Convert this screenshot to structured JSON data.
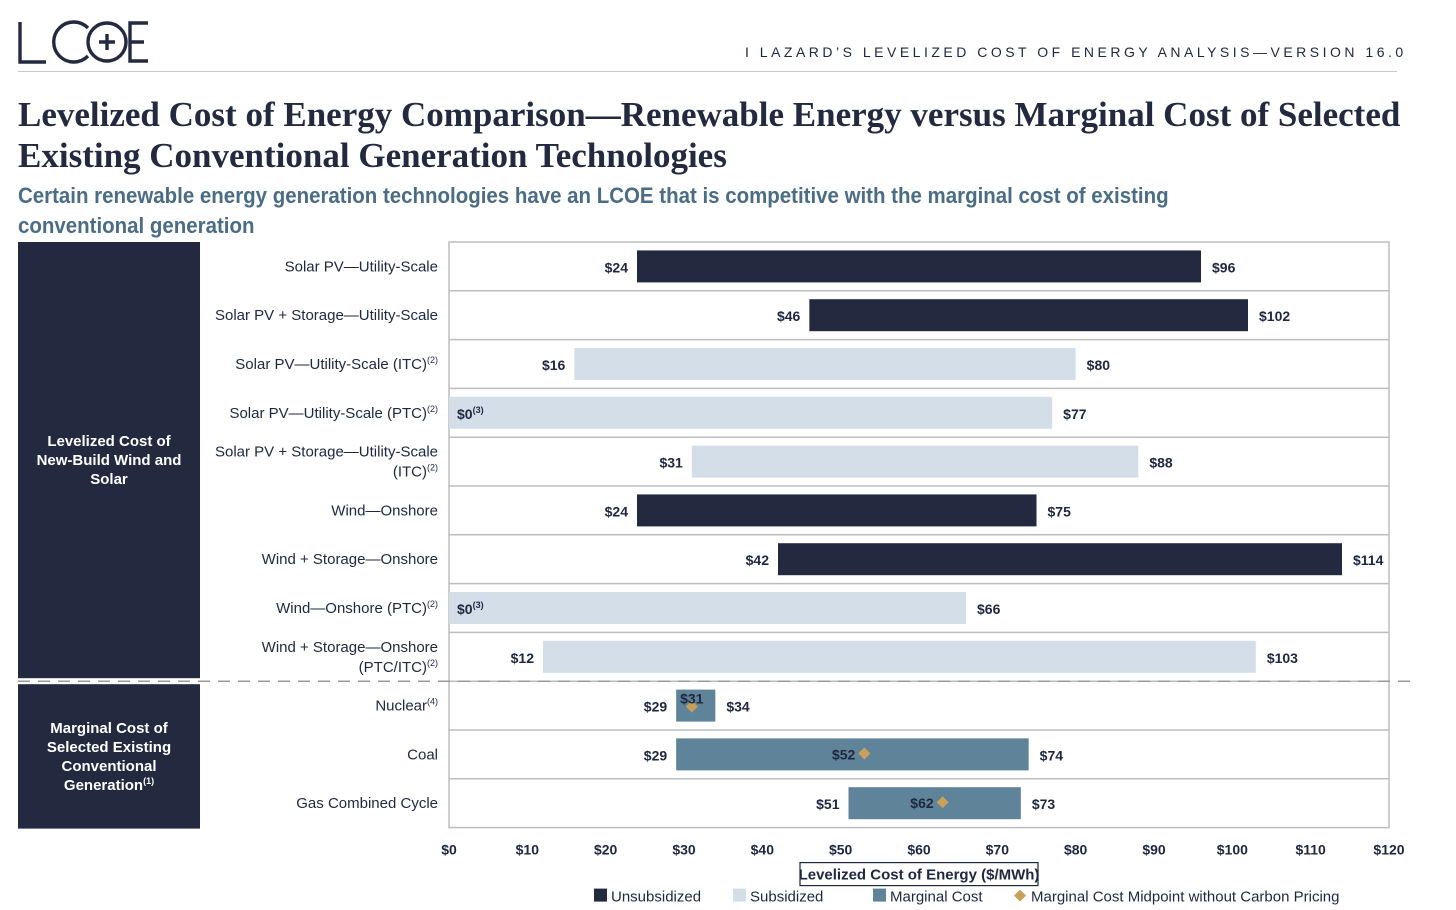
{
  "header": {
    "logo_text": "LCOE",
    "report_line": "I    LAZARD’S LEVELIZED COST OF ENERGY ANALYSIS—VERSION 16.0"
  },
  "title": "Levelized Cost of Energy Comparison—Renewable Energy versus Marginal Cost of Selected Existing Conventional Generation Technologies",
  "subtitle": "Certain renewable energy generation technologies have an LCOE that is competitive with the marginal cost of existing conventional generation",
  "chart_data": {
    "type": "bar",
    "orientation": "horizontal-range",
    "xlabel": "Levelized Cost of Energy ($/MWh)",
    "xlim": [
      0,
      120
    ],
    "xticks": [
      0,
      10,
      20,
      30,
      40,
      50,
      60,
      70,
      80,
      90,
      100,
      110,
      120
    ],
    "xtick_labels": [
      "$0",
      "$10",
      "$20",
      "$30",
      "$40",
      "$50",
      "$60",
      "$70",
      "$80",
      "$90",
      "$100",
      "$110",
      "$120"
    ],
    "groups": [
      {
        "label": "Levelized Cost of New-Build Wind and Solar",
        "lines": [
          "Levelized Cost of",
          "New-Build Wind and",
          "Solar"
        ],
        "sup": ""
      },
      {
        "label": "Marginal Cost of Selected Existing Conventional Generation",
        "lines": [
          "Marginal Cost of",
          "Selected Existing",
          "Conventional",
          "Generation"
        ],
        "sup": "(1)"
      }
    ],
    "rows": [
      {
        "lines": [
          "Solar PV—Utility-Scale"
        ],
        "sup": "",
        "group": 0,
        "kind": "unsubsidized",
        "low": 24,
        "high": 96,
        "low_label": "$24",
        "high_label": "$96",
        "low_sup": ""
      },
      {
        "lines": [
          "Solar PV + Storage—Utility-Scale"
        ],
        "sup": "",
        "group": 0,
        "kind": "unsubsidized",
        "low": 46,
        "high": 102,
        "low_label": "$46",
        "high_label": "$102",
        "low_sup": ""
      },
      {
        "lines": [
          "Solar PV—Utility-Scale (ITC)"
        ],
        "sup": "(2)",
        "group": 0,
        "kind": "subsidized",
        "low": 16,
        "high": 80,
        "low_label": "$16",
        "high_label": "$80",
        "low_sup": ""
      },
      {
        "lines": [
          "Solar PV—Utility-Scale (PTC)"
        ],
        "sup": "(2)",
        "group": 0,
        "kind": "subsidized",
        "low": 0,
        "high": 77,
        "low_label": "$0",
        "high_label": "$77",
        "low_sup": "(3)"
      },
      {
        "lines": [
          "Solar PV + Storage—Utility-Scale",
          "(ITC)"
        ],
        "sup": "(2)",
        "group": 0,
        "kind": "subsidized",
        "low": 31,
        "high": 88,
        "low_label": "$31",
        "high_label": "$88",
        "low_sup": ""
      },
      {
        "lines": [
          "Wind—Onshore"
        ],
        "sup": "",
        "group": 0,
        "kind": "unsubsidized",
        "low": 24,
        "high": 75,
        "low_label": "$24",
        "high_label": "$75",
        "low_sup": ""
      },
      {
        "lines": [
          "Wind + Storage—Onshore"
        ],
        "sup": "",
        "group": 0,
        "kind": "unsubsidized",
        "low": 42,
        "high": 114,
        "low_label": "$42",
        "high_label": "$114",
        "low_sup": ""
      },
      {
        "lines": [
          "Wind—Onshore (PTC)"
        ],
        "sup": "(2)",
        "group": 0,
        "kind": "subsidized",
        "low": 0,
        "high": 66,
        "low_label": "$0",
        "high_label": "$66",
        "low_sup": "(3)"
      },
      {
        "lines": [
          "Wind + Storage—Onshore",
          "(PTC/ITC)"
        ],
        "sup": "(2)",
        "group": 0,
        "kind": "subsidized",
        "low": 12,
        "high": 103,
        "low_label": "$12",
        "high_label": "$103",
        "low_sup": ""
      },
      {
        "lines": [
          "Nuclear"
        ],
        "sup": "(4)",
        "group": 1,
        "kind": "marginal",
        "low": 29,
        "high": 34,
        "low_label": "$29",
        "high_label": "$34",
        "low_sup": "",
        "midpoint": 31,
        "midpoint_label": "$31"
      },
      {
        "lines": [
          "Coal"
        ],
        "sup": "",
        "group": 1,
        "kind": "marginal",
        "low": 29,
        "high": 74,
        "low_label": "$29",
        "high_label": "$74",
        "low_sup": "",
        "midpoint": 52,
        "midpoint_label": "$52"
      },
      {
        "lines": [
          "Gas Combined Cycle"
        ],
        "sup": "",
        "group": 1,
        "kind": "marginal",
        "low": 51,
        "high": 73,
        "low_label": "$51",
        "high_label": "$73",
        "low_sup": "",
        "midpoint": 62,
        "midpoint_label": "$62"
      }
    ],
    "legend": [
      {
        "key": "unsubsidized",
        "label": "Unsubsidized"
      },
      {
        "key": "subsidized",
        "label": "Subsidized"
      },
      {
        "key": "marginal",
        "label": "Marginal Cost"
      },
      {
        "key": "midpoint",
        "label": "Marginal Cost Midpoint without Carbon Pricing"
      }
    ],
    "colors": {
      "unsubsidized": "#232a40",
      "subsidized": "#d3dee8",
      "marginal": "#5f8399",
      "midpoint": "#c9a05a",
      "group_panel": "#232a40"
    }
  }
}
